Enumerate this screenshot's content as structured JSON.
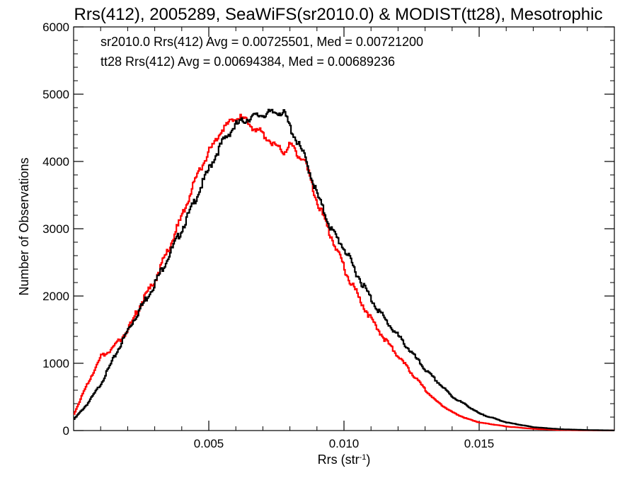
{
  "chart_data": {
    "type": "line",
    "title": "Rrs(412), 2005289, SeaWiFS(sr2010.0) & MODIST(tt28), Mesotrophic",
    "xlabel": "Rrs (str",
    "xlabel_sup": "-1",
    "xlabel_end": ")",
    "ylabel": "Number of Observations",
    "xlim": [
      0.0,
      0.02
    ],
    "ylim": [
      0,
      6000
    ],
    "x_ticks": [
      0.005,
      0.01,
      0.015
    ],
    "x_tick_labels": [
      "0.005",
      "0.010",
      "0.015"
    ],
    "y_ticks": [
      0,
      1000,
      2000,
      3000,
      4000,
      5000,
      6000
    ],
    "y_tick_labels": [
      "0",
      "1000",
      "2000",
      "3000",
      "4000",
      "5000",
      "6000"
    ],
    "grid": false,
    "legend_position": "top-left",
    "annotations": [
      {
        "text": "sr2010.0 Rrs(412) Avg = 0.00725501, Med = 0.00721200",
        "color": "#000000"
      },
      {
        "text": "tt28 Rrs(412) Avg = 0.00694384, Med = 0.00689236",
        "color": "#ff0000"
      }
    ],
    "series": [
      {
        "color": "#000000",
        "x": [
          0.0,
          0.0005,
          0.001,
          0.0015,
          0.002,
          0.0025,
          0.003,
          0.0035,
          0.004,
          0.0045,
          0.005,
          0.0055,
          0.006,
          0.0065,
          0.007,
          0.0073,
          0.0076,
          0.0078,
          0.008,
          0.0083,
          0.0085,
          0.009,
          0.0095,
          0.01,
          0.0105,
          0.011,
          0.0115,
          0.012,
          0.0125,
          0.013,
          0.0135,
          0.014,
          0.0145,
          0.015,
          0.016,
          0.017,
          0.018,
          0.019,
          0.02
        ],
        "y": [
          170,
          400,
          700,
          1100,
          1500,
          1850,
          2200,
          2600,
          3000,
          3450,
          3900,
          4300,
          4550,
          4650,
          4700,
          4720,
          4740,
          4700,
          4500,
          4250,
          4100,
          3500,
          3000,
          2700,
          2300,
          1950,
          1650,
          1400,
          1150,
          900,
          700,
          500,
          380,
          250,
          120,
          50,
          20,
          8,
          2
        ]
      },
      {
        "color": "#ff0000",
        "x": [
          0.0,
          0.0005,
          0.001,
          0.0015,
          0.002,
          0.0025,
          0.003,
          0.0035,
          0.004,
          0.0045,
          0.005,
          0.0055,
          0.006,
          0.0062,
          0.0065,
          0.007,
          0.0073,
          0.0076,
          0.0078,
          0.008,
          0.0083,
          0.0085,
          0.009,
          0.0095,
          0.01,
          0.0105,
          0.011,
          0.0115,
          0.012,
          0.0125,
          0.013,
          0.0135,
          0.014,
          0.0145,
          0.015,
          0.016,
          0.017,
          0.018,
          0.019,
          0.02
        ],
        "y": [
          250,
          700,
          1100,
          1250,
          1500,
          1900,
          2250,
          2700,
          3200,
          3750,
          4150,
          4500,
          4650,
          4650,
          4550,
          4400,
          4300,
          4200,
          4150,
          4250,
          4100,
          4050,
          3400,
          2900,
          2400,
          2000,
          1650,
          1350,
          1100,
          850,
          600,
          400,
          270,
          180,
          120,
          60,
          25,
          8,
          3,
          1
        ]
      }
    ]
  }
}
